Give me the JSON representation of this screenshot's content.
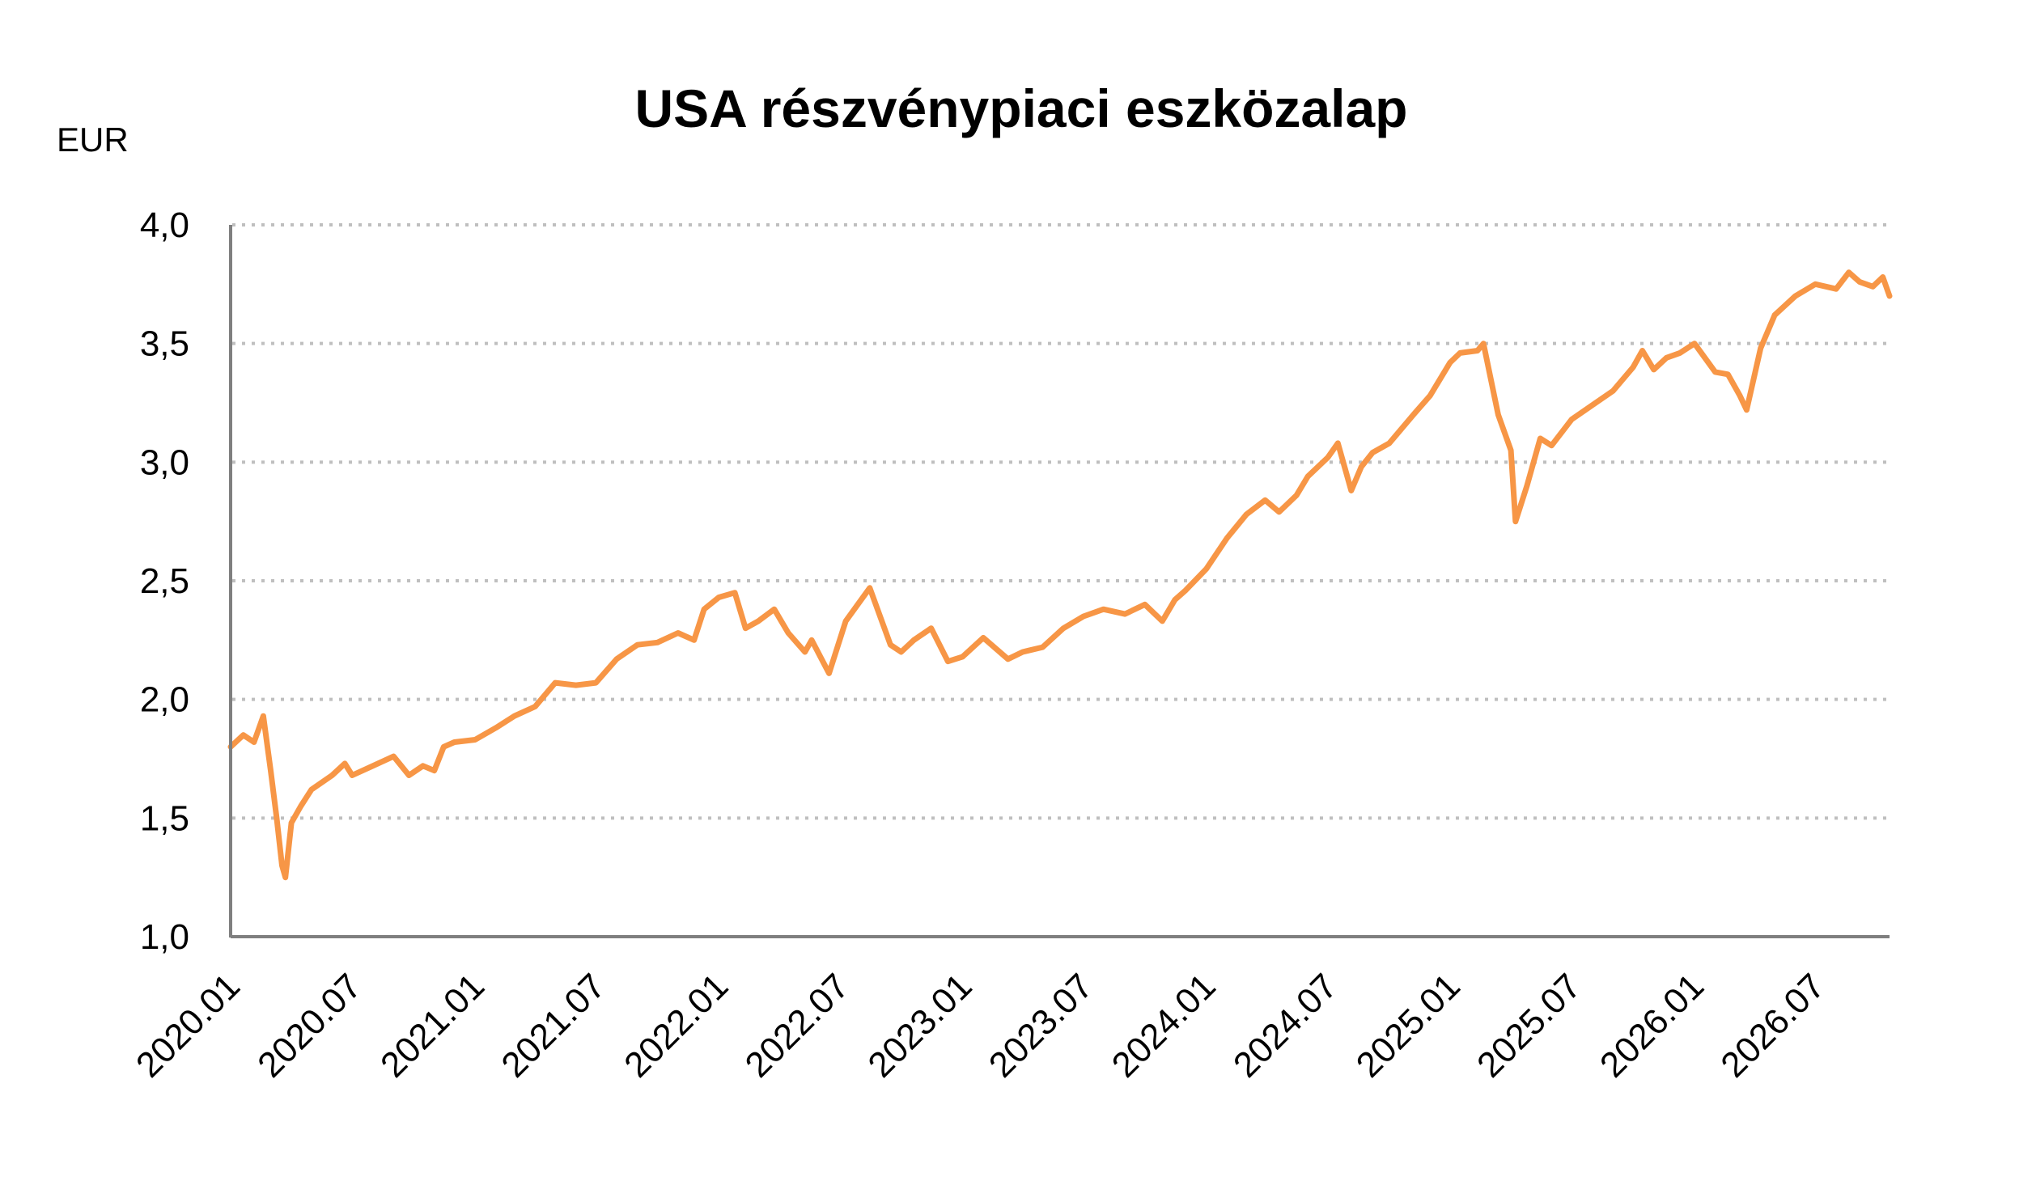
{
  "chart_data": {
    "type": "line",
    "title": "USA részvénypiaci eszközalap",
    "ylabel": "EUR",
    "xlabel": "",
    "ylim": [
      1.0,
      4.0
    ],
    "yticks": [
      "1,0",
      "1,5",
      "2,0",
      "2,5",
      "3,0",
      "3,5",
      "4,0"
    ],
    "ytick_values": [
      1.0,
      1.5,
      2.0,
      2.5,
      3.0,
      3.5,
      4.0
    ],
    "xticks": [
      "2020.01",
      "2020.07",
      "2021.01",
      "2021.07",
      "2022.01",
      "2022.07",
      "2023.01",
      "2023.07",
      "2024.01",
      "2024.07",
      "2025.01",
      "2025.07",
      "2026.01",
      "2026.07"
    ],
    "xlim": [
      "2020-01-01",
      "2026-10-20"
    ],
    "grid": "horizontal dotted",
    "line_color": "#F79646",
    "series": [
      {
        "x": [
          "2020-01-01",
          "2020-01-20",
          "2020-02-05",
          "2020-02-19",
          "2020-03-01",
          "2020-03-10",
          "2020-03-18",
          "2020-03-23",
          "2020-04-01",
          "2020-04-15",
          "2020-05-01",
          "2020-06-01",
          "2020-06-20",
          "2020-07-01",
          "2020-08-01",
          "2020-09-01",
          "2020-09-24",
          "2020-10-15",
          "2020-11-01",
          "2020-11-15",
          "2020-12-01",
          "2021-01-01",
          "2021-02-01",
          "2021-03-01",
          "2021-04-01",
          "2021-05-01",
          "2021-06-01",
          "2021-07-01",
          "2021-08-01",
          "2021-09-01",
          "2021-10-01",
          "2021-11-01",
          "2021-11-25",
          "2021-12-10",
          "2022-01-01",
          "2022-01-25",
          "2022-02-10",
          "2022-03-01",
          "2022-03-25",
          "2022-04-15",
          "2022-05-10",
          "2022-05-20",
          "2022-06-15",
          "2022-07-10",
          "2022-08-15",
          "2022-09-15",
          "2022-10-01",
          "2022-10-20",
          "2022-11-15",
          "2022-12-10",
          "2023-01-01",
          "2023-02-01",
          "2023-03-10",
          "2023-04-01",
          "2023-05-01",
          "2023-06-01",
          "2023-07-01",
          "2023-07-31",
          "2023-09-01",
          "2023-10-01",
          "2023-10-27",
          "2023-11-15",
          "2023-12-01",
          "2024-01-01",
          "2024-02-01",
          "2024-03-01",
          "2024-03-29",
          "2024-04-19",
          "2024-05-15",
          "2024-06-01",
          "2024-07-01",
          "2024-07-16",
          "2024-08-05",
          "2024-08-20",
          "2024-09-06",
          "2024-10-01",
          "2024-11-06",
          "2024-12-01",
          "2024-12-31",
          "2025-01-15",
          "2025-02-10",
          "2025-02-19",
          "2025-03-13",
          "2025-04-01",
          "2025-04-08",
          "2025-04-25",
          "2025-05-15",
          "2025-06-01",
          "2025-07-01",
          "2025-08-01",
          "2025-09-01",
          "2025-10-01",
          "2025-10-15",
          "2025-11-01",
          "2025-11-20",
          "2025-12-10",
          "2026-01-01",
          "2026-02-01",
          "2026-02-20",
          "2026-03-10",
          "2026-03-20",
          "2026-04-10",
          "2026-05-01",
          "2026-06-01",
          "2026-07-01",
          "2026-08-01",
          "2026-08-20",
          "2026-09-05",
          "2026-09-25",
          "2026-10-10",
          "2026-10-20"
        ],
        "y": [
          1.8,
          1.85,
          1.82,
          1.93,
          1.7,
          1.5,
          1.3,
          1.25,
          1.48,
          1.55,
          1.62,
          1.68,
          1.73,
          1.68,
          1.72,
          1.76,
          1.68,
          1.72,
          1.7,
          1.8,
          1.82,
          1.83,
          1.88,
          1.93,
          1.97,
          2.07,
          2.06,
          2.07,
          2.17,
          2.23,
          2.24,
          2.28,
          2.25,
          2.38,
          2.43,
          2.45,
          2.3,
          2.33,
          2.38,
          2.28,
          2.2,
          2.25,
          2.11,
          2.33,
          2.47,
          2.23,
          2.2,
          2.25,
          2.3,
          2.16,
          2.18,
          2.26,
          2.17,
          2.2,
          2.22,
          2.3,
          2.35,
          2.38,
          2.36,
          2.4,
          2.33,
          2.42,
          2.46,
          2.55,
          2.68,
          2.78,
          2.84,
          2.79,
          2.86,
          2.94,
          3.02,
          3.08,
          2.88,
          2.98,
          3.04,
          3.08,
          3.2,
          3.28,
          3.42,
          3.46,
          3.47,
          3.5,
          3.2,
          3.05,
          2.75,
          2.9,
          3.1,
          3.07,
          3.18,
          3.24,
          3.3,
          3.4,
          3.47,
          3.39,
          3.44,
          3.46,
          3.5,
          3.38,
          3.37,
          3.28,
          3.22,
          3.48,
          3.62,
          3.7,
          3.75,
          3.73,
          3.8,
          3.76,
          3.74,
          3.78,
          3.7
        ]
      }
    ]
  }
}
